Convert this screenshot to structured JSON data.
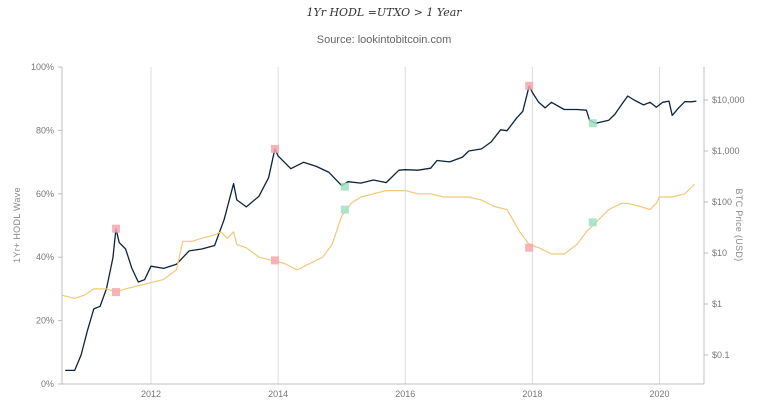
{
  "chart_data": {
    "type": "line",
    "title": "1Yr HODL =UTXO > 1 Year",
    "subtitle": "Source: lookintobitcoin.com",
    "ylabel_left": "1Yr+ HODL Wave",
    "ylabel_right": "BTC Price (USD)",
    "left_axis": {
      "min": 0,
      "max": 100,
      "ticks": [
        "0%",
        "20%",
        "40%",
        "60%",
        "80%",
        "100%"
      ]
    },
    "right_axis": {
      "scale": "log",
      "ticks": [
        "$0.1",
        "$1",
        "$10",
        "$100",
        "$1,000",
        "$10,000"
      ]
    },
    "x_ticks": [
      "2012",
      "2014",
      "2016",
      "2018",
      "2020"
    ],
    "x_range": [
      2010.6,
      2020.7
    ],
    "grid": "vertical",
    "series": [
      {
        "axis": "right",
        "color": "#0d2438",
        "points": [
          [
            2010.65,
            0.05
          ],
          [
            2010.8,
            0.05
          ],
          [
            2010.9,
            0.1
          ],
          [
            2011.0,
            0.3
          ],
          [
            2011.1,
            0.8
          ],
          [
            2011.2,
            0.9
          ],
          [
            2011.3,
            2
          ],
          [
            2011.4,
            8
          ],
          [
            2011.45,
            30
          ],
          [
            2011.5,
            16
          ],
          [
            2011.6,
            12
          ],
          [
            2011.7,
            5
          ],
          [
            2011.8,
            2.7
          ],
          [
            2011.9,
            3
          ],
          [
            2012.0,
            5.5
          ],
          [
            2012.2,
            5
          ],
          [
            2012.4,
            6
          ],
          [
            2012.6,
            11
          ],
          [
            2012.8,
            12
          ],
          [
            2013.0,
            14
          ],
          [
            2013.15,
            45
          ],
          [
            2013.3,
            230
          ],
          [
            2013.35,
            110
          ],
          [
            2013.5,
            80
          ],
          [
            2013.7,
            130
          ],
          [
            2013.85,
            300
          ],
          [
            2013.95,
            1100
          ],
          [
            2014.0,
            800
          ],
          [
            2014.1,
            600
          ],
          [
            2014.2,
            450
          ],
          [
            2014.4,
            600
          ],
          [
            2014.6,
            500
          ],
          [
            2014.8,
            380
          ],
          [
            2015.0,
            210
          ],
          [
            2015.1,
            250
          ],
          [
            2015.3,
            235
          ],
          [
            2015.5,
            270
          ],
          [
            2015.7,
            240
          ],
          [
            2015.9,
            420
          ],
          [
            2016.0,
            430
          ],
          [
            2016.2,
            420
          ],
          [
            2016.4,
            460
          ],
          [
            2016.5,
            650
          ],
          [
            2016.7,
            610
          ],
          [
            2016.9,
            760
          ],
          [
            2017.0,
            1000
          ],
          [
            2017.2,
            1100
          ],
          [
            2017.35,
            1500
          ],
          [
            2017.5,
            2600
          ],
          [
            2017.6,
            2500
          ],
          [
            2017.75,
            4400
          ],
          [
            2017.85,
            6000
          ],
          [
            2017.95,
            19000
          ],
          [
            2018.0,
            14000
          ],
          [
            2018.1,
            9000
          ],
          [
            2018.2,
            7000
          ],
          [
            2018.3,
            9000
          ],
          [
            2018.5,
            6500
          ],
          [
            2018.7,
            6500
          ],
          [
            2018.85,
            6300
          ],
          [
            2018.9,
            4000
          ],
          [
            2019.0,
            3500
          ],
          [
            2019.2,
            4000
          ],
          [
            2019.3,
            5300
          ],
          [
            2019.4,
            8000
          ],
          [
            2019.5,
            12000
          ],
          [
            2019.6,
            10000
          ],
          [
            2019.75,
            8000
          ],
          [
            2019.85,
            9000
          ],
          [
            2019.95,
            7200
          ],
          [
            2020.05,
            9000
          ],
          [
            2020.15,
            9500
          ],
          [
            2020.2,
            5000
          ],
          [
            2020.3,
            7000
          ],
          [
            2020.4,
            9300
          ],
          [
            2020.5,
            9200
          ],
          [
            2020.58,
            9500
          ]
        ]
      },
      {
        "axis": "left",
        "color": "#f2c87a",
        "points": [
          [
            2010.6,
            28
          ],
          [
            2010.8,
            27
          ],
          [
            2010.95,
            28
          ],
          [
            2011.1,
            30
          ],
          [
            2011.3,
            30
          ],
          [
            2011.45,
            29
          ],
          [
            2011.6,
            30
          ],
          [
            2011.8,
            31
          ],
          [
            2012.0,
            32
          ],
          [
            2012.2,
            33
          ],
          [
            2012.4,
            36
          ],
          [
            2012.5,
            45
          ],
          [
            2012.65,
            45
          ],
          [
            2012.8,
            46
          ],
          [
            2013.0,
            47
          ],
          [
            2013.1,
            48
          ],
          [
            2013.2,
            46
          ],
          [
            2013.3,
            48
          ],
          [
            2013.35,
            44
          ],
          [
            2013.5,
            43
          ],
          [
            2013.7,
            40
          ],
          [
            2013.9,
            39
          ],
          [
            2014.1,
            38
          ],
          [
            2014.3,
            36
          ],
          [
            2014.5,
            38
          ],
          [
            2014.7,
            40
          ],
          [
            2014.85,
            44
          ],
          [
            2015.0,
            53
          ],
          [
            2015.15,
            57
          ],
          [
            2015.3,
            59
          ],
          [
            2015.5,
            60
          ],
          [
            2015.7,
            61
          ],
          [
            2015.9,
            61
          ],
          [
            2016.0,
            61
          ],
          [
            2016.2,
            60
          ],
          [
            2016.4,
            60
          ],
          [
            2016.6,
            59
          ],
          [
            2016.8,
            59
          ],
          [
            2017.0,
            59
          ],
          [
            2017.2,
            58
          ],
          [
            2017.4,
            56
          ],
          [
            2017.6,
            55
          ],
          [
            2017.8,
            48
          ],
          [
            2017.95,
            44
          ],
          [
            2018.1,
            43
          ],
          [
            2018.3,
            41
          ],
          [
            2018.5,
            41
          ],
          [
            2018.7,
            44
          ],
          [
            2018.85,
            48
          ],
          [
            2019.0,
            51
          ],
          [
            2019.2,
            55
          ],
          [
            2019.4,
            57
          ],
          [
            2019.5,
            57
          ],
          [
            2019.7,
            56
          ],
          [
            2019.85,
            55
          ],
          [
            2019.95,
            57
          ],
          [
            2020.0,
            59
          ],
          [
            2020.2,
            59
          ],
          [
            2020.4,
            60
          ],
          [
            2020.5,
            62
          ],
          [
            2020.55,
            63
          ]
        ]
      }
    ],
    "markers": [
      {
        "x": 2011.45,
        "y_price": 30,
        "color": "#f4a7ae"
      },
      {
        "x": 2013.95,
        "y_price": 1100,
        "color": "#f4a7ae"
      },
      {
        "x": 2017.95,
        "y_price": 19000,
        "color": "#f4a7ae"
      },
      {
        "x": 2015.05,
        "y_price": 200,
        "color": "#9fe0c4"
      },
      {
        "x": 2018.95,
        "y_price": 3500,
        "color": "#9fe0c4"
      },
      {
        "x": 2011.45,
        "y_pct": 29,
        "color": "#f4a7ae"
      },
      {
        "x": 2013.95,
        "y_pct": 39,
        "color": "#f4a7ae"
      },
      {
        "x": 2017.95,
        "y_pct": 43,
        "color": "#f4a7ae"
      },
      {
        "x": 2015.05,
        "y_pct": 55,
        "color": "#9fe0c4"
      },
      {
        "x": 2018.95,
        "y_pct": 51,
        "color": "#9fe0c4"
      }
    ]
  }
}
